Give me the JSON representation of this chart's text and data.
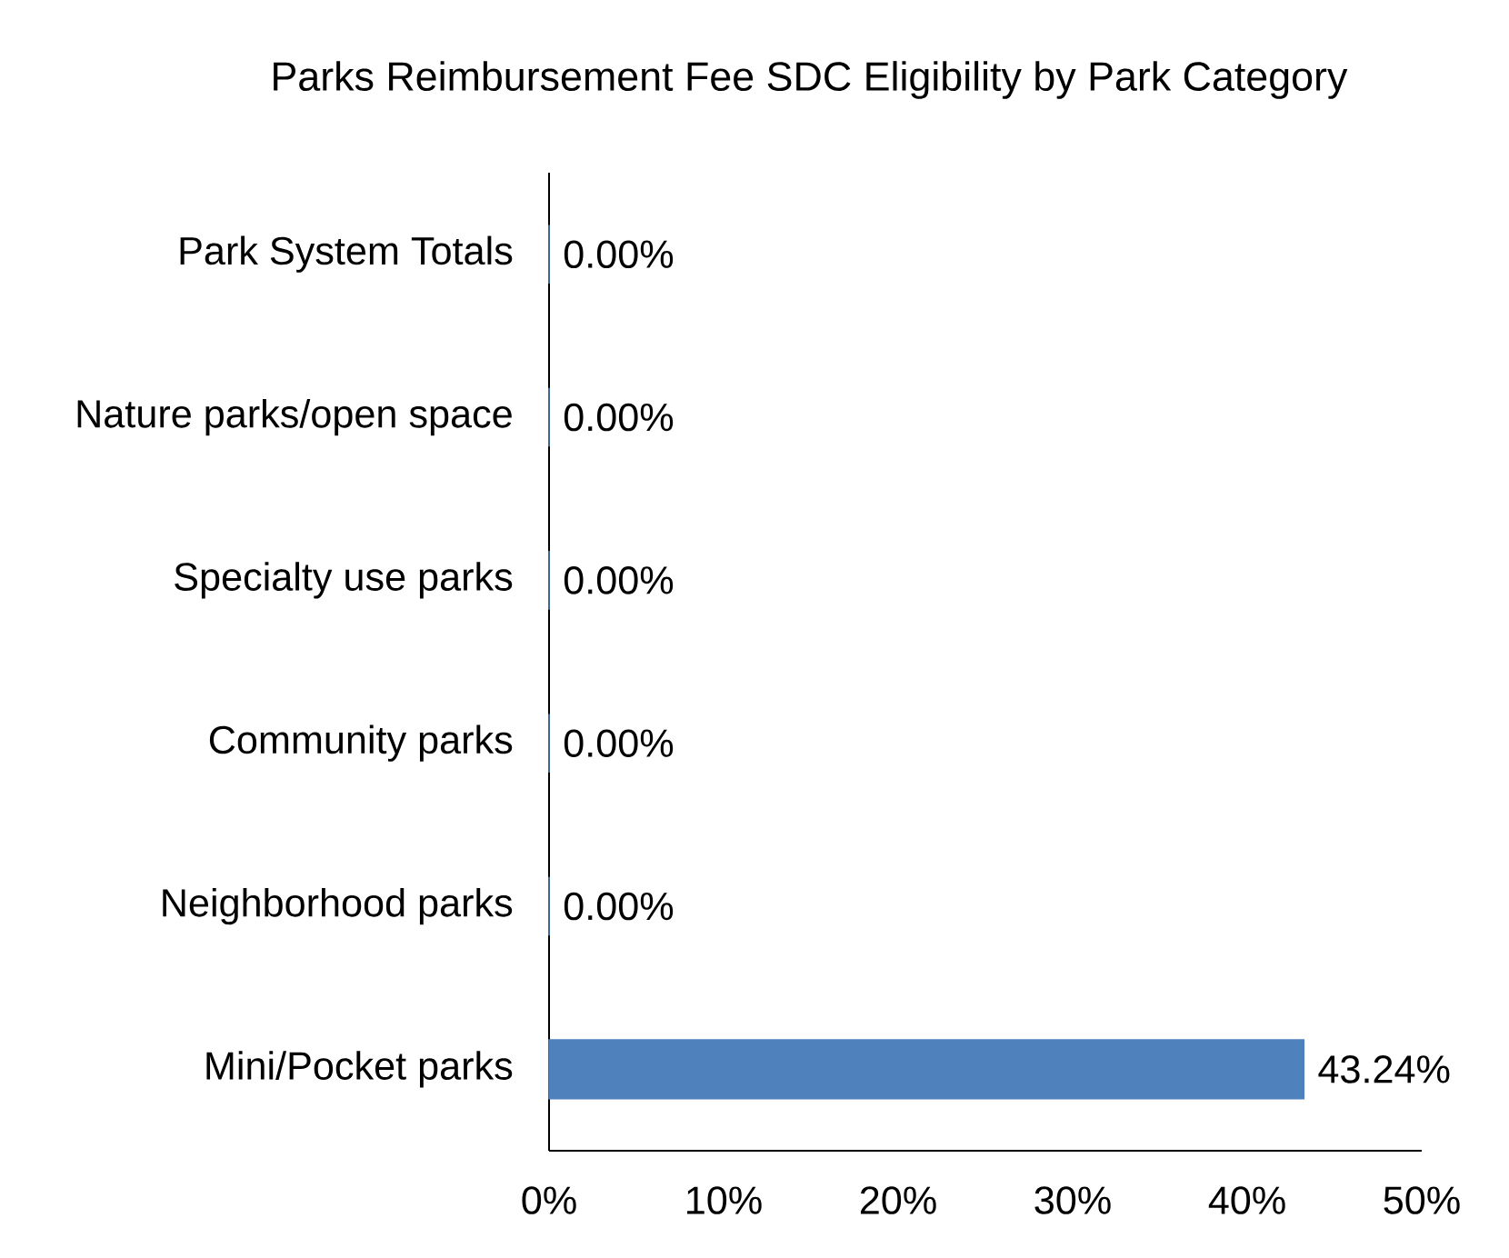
{
  "chart_data": {
    "type": "bar",
    "orientation": "horizontal",
    "title": "Parks Reimbursement Fee SDC Eligibility by Park Category",
    "categories": [
      "Park System Totals",
      "Nature parks/open space",
      "Specialty use parks",
      "Community parks",
      "Neighborhood parks",
      "Mini/Pocket parks"
    ],
    "values": [
      0,
      0,
      0,
      0,
      0,
      43.24
    ],
    "value_labels": [
      "0.00%",
      "0.00%",
      "0.00%",
      "0.00%",
      "0.00%",
      "43.24%"
    ],
    "color": "#4f81bd",
    "xlim": [
      0,
      50
    ],
    "xticks": [
      {
        "value": 0,
        "label": "0%"
      },
      {
        "value": 10,
        "label": "10%"
      },
      {
        "value": 20,
        "label": "20%"
      },
      {
        "value": 30,
        "label": "30%"
      },
      {
        "value": 40,
        "label": "40%"
      },
      {
        "value": 50,
        "label": "50%"
      }
    ],
    "grid": false
  }
}
